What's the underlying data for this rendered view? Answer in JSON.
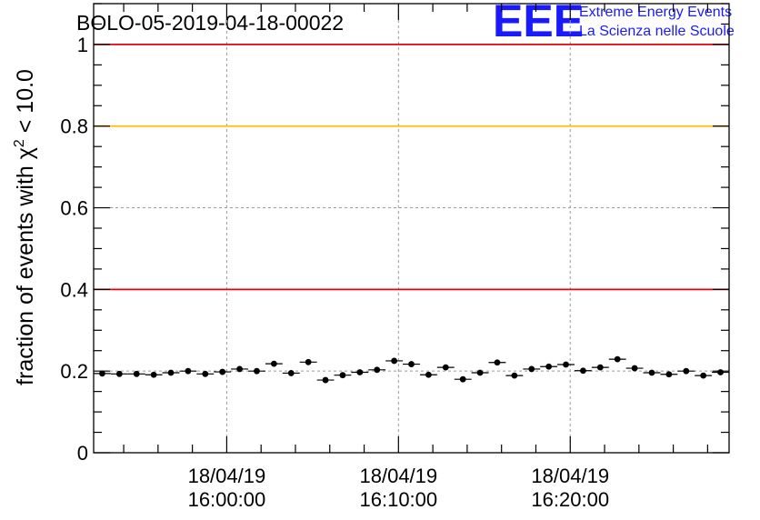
{
  "chart_data": {
    "type": "scatter",
    "title": "BOLO-05-2019-04-18-00022",
    "ylabel": "fraction of events with χ² < 10.0",
    "ylabel_base": "fraction of events with χ",
    "ylabel_sup": "2",
    "ylabel_tail": " < 10.0",
    "xlabel": "",
    "xlim": [
      "2019-04-18 15:52:15",
      "2019-04-18 16:29:15"
    ],
    "ylim": [
      0,
      1.1
    ],
    "grid": true,
    "yticks": [
      {
        "value": 0,
        "label": "0"
      },
      {
        "value": 0.2,
        "label": "0.2"
      },
      {
        "value": 0.4,
        "label": "0.4"
      },
      {
        "value": 0.6,
        "label": "0.6"
      },
      {
        "value": 0.8,
        "label": "0.8"
      },
      {
        "value": 1,
        "label": "1"
      }
    ],
    "xticks": [
      {
        "time": "2019-04-18 16:00:00",
        "date_label": "18/04/19",
        "time_label": "16:00:00"
      },
      {
        "time": "2019-04-18 16:10:00",
        "date_label": "18/04/19",
        "time_label": "16:10:00"
      },
      {
        "time": "2019-04-18 16:20:00",
        "date_label": "18/04/19",
        "time_label": "16:20:00"
      }
    ],
    "reference_lines": [
      {
        "y": 1.0,
        "color": "#e8000b"
      },
      {
        "y": 0.8,
        "color": "#ffc000"
      },
      {
        "y": 0.4,
        "color": "#e8000b"
      }
    ],
    "series": [
      {
        "color": "#000000",
        "bin_width_minutes": 1,
        "x": [
          "15:52:45",
          "15:53:45",
          "15:54:45",
          "15:55:45",
          "15:56:45",
          "15:57:45",
          "15:58:45",
          "15:59:45",
          "16:00:45",
          "16:01:45",
          "16:02:45",
          "16:03:45",
          "16:04:45",
          "16:05:45",
          "16:06:45",
          "16:07:45",
          "16:08:45",
          "16:09:45",
          "16:10:45",
          "16:11:45",
          "16:12:45",
          "16:13:45",
          "16:14:45",
          "16:15:45",
          "16:16:45",
          "16:17:45",
          "16:18:45",
          "16:19:45",
          "16:20:45",
          "16:21:45",
          "16:22:45",
          "16:23:45",
          "16:24:45",
          "16:25:45",
          "16:26:45",
          "16:27:45",
          "16:28:45"
        ],
        "y": [
          0.194,
          0.193,
          0.193,
          0.191,
          0.196,
          0.2,
          0.193,
          0.198,
          0.205,
          0.2,
          0.218,
          0.195,
          0.222,
          0.178,
          0.19,
          0.197,
          0.203,
          0.225,
          0.217,
          0.191,
          0.209,
          0.18,
          0.196,
          0.221,
          0.189,
          0.205,
          0.211,
          0.216,
          0.201,
          0.209,
          0.229,
          0.207,
          0.196,
          0.192,
          0.2,
          0.189,
          0.197
        ],
        "yerr": 0.005
      }
    ]
  },
  "logo": {
    "mark": "EEE",
    "line1": "Extreme Energy Events",
    "line2": "La Scienza nelle Scuole"
  }
}
